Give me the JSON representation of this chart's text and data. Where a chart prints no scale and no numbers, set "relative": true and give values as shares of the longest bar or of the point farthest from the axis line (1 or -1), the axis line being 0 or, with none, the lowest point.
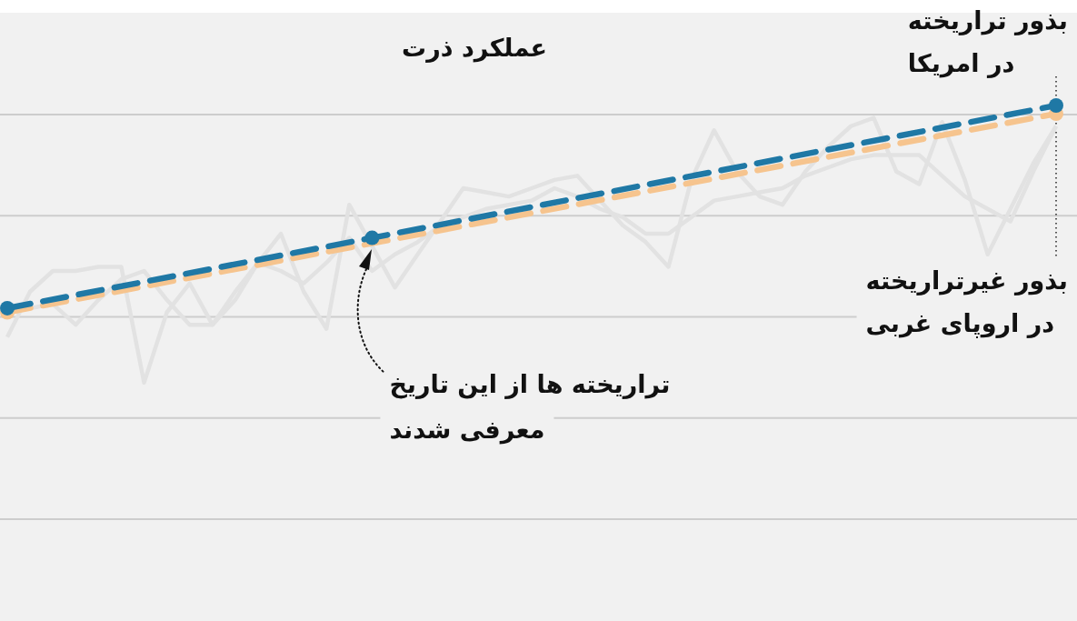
{
  "chart_data": {
    "type": "line",
    "title": "عملکرد ذرت",
    "relative": true,
    "grid": true,
    "legend": false,
    "categories": [
      null,
      null,
      null,
      null,
      null,
      null,
      null,
      null,
      null,
      null,
      null,
      null,
      null,
      null,
      null,
      null,
      null,
      null,
      null,
      null,
      null,
      null,
      null,
      null,
      null,
      null,
      null,
      null,
      null,
      null,
      null,
      null,
      null,
      null,
      null,
      null,
      null,
      null,
      null,
      null,
      null,
      null,
      null,
      null,
      null,
      null,
      null
    ],
    "series": [
      {
        "color": "#e2e2e2",
        "marker": "none",
        "line_style": "solid",
        "values": [
          0.44,
          0.55,
          0.6,
          0.6,
          0.61,
          0.61,
          0.33,
          0.5,
          0.57,
          0.47,
          0.53,
          0.62,
          0.69,
          0.55,
          0.46,
          0.76,
          0.66,
          0.56,
          0.64,
          0.72,
          0.8,
          0.79,
          0.78,
          0.8,
          0.82,
          0.83,
          0.77,
          0.71,
          0.67,
          0.61,
          0.82,
          0.94,
          0.84,
          0.78,
          0.76,
          0.84,
          0.9,
          0.95,
          0.97,
          0.84,
          0.81,
          0.96,
          0.82,
          0.64,
          0.75,
          0.86,
          0.95
        ]
      },
      {
        "color": "#e2e2e2",
        "marker": "none",
        "line_style": "solid",
        "values": [
          0.5,
          0.51,
          0.52,
          0.47,
          0.53,
          0.58,
          0.6,
          0.53,
          0.47,
          0.47,
          0.55,
          0.62,
          0.6,
          0.57,
          0.62,
          0.68,
          0.6,
          0.64,
          0.67,
          0.71,
          0.73,
          0.75,
          0.76,
          0.77,
          0.8,
          0.78,
          0.75,
          0.73,
          0.69,
          0.69,
          0.73,
          0.77,
          0.78,
          0.79,
          0.8,
          0.83,
          0.85,
          0.87,
          0.88,
          0.88,
          0.88,
          0.83,
          0.78,
          0.75,
          0.72,
          0.84,
          0.95
        ]
      },
      {
        "name": "بذور غیرتراریخته\nدر اروپای غربی",
        "color": "#f6c48e",
        "marker": "circle",
        "line_style": "dashed",
        "values": [
          0.5,
          null,
          null,
          null,
          null,
          null,
          null,
          null,
          null,
          null,
          null,
          null,
          null,
          null,
          null,
          null,
          null,
          null,
          null,
          null,
          null,
          null,
          null,
          null,
          null,
          null,
          null,
          null,
          null,
          null,
          null,
          null,
          null,
          null,
          null,
          null,
          null,
          null,
          null,
          null,
          null,
          null,
          null,
          null,
          null,
          null,
          0.98
        ]
      },
      {
        "name": "بذور تراریخته\nدر امریکا",
        "color": "#1f78a5",
        "marker": "circle",
        "line_style": "dashed",
        "values": [
          0.51,
          null,
          null,
          null,
          null,
          null,
          null,
          null,
          null,
          null,
          null,
          null,
          null,
          null,
          null,
          null,
          0.68,
          null,
          null,
          null,
          null,
          null,
          null,
          null,
          null,
          null,
          null,
          null,
          null,
          null,
          null,
          null,
          null,
          null,
          null,
          null,
          null,
          null,
          null,
          null,
          null,
          null,
          null,
          null,
          null,
          null,
          1
        ]
      }
    ],
    "annotations": [
      "تراریخته ها از این تاریخ\nمعرفی شدند"
    ]
  }
}
